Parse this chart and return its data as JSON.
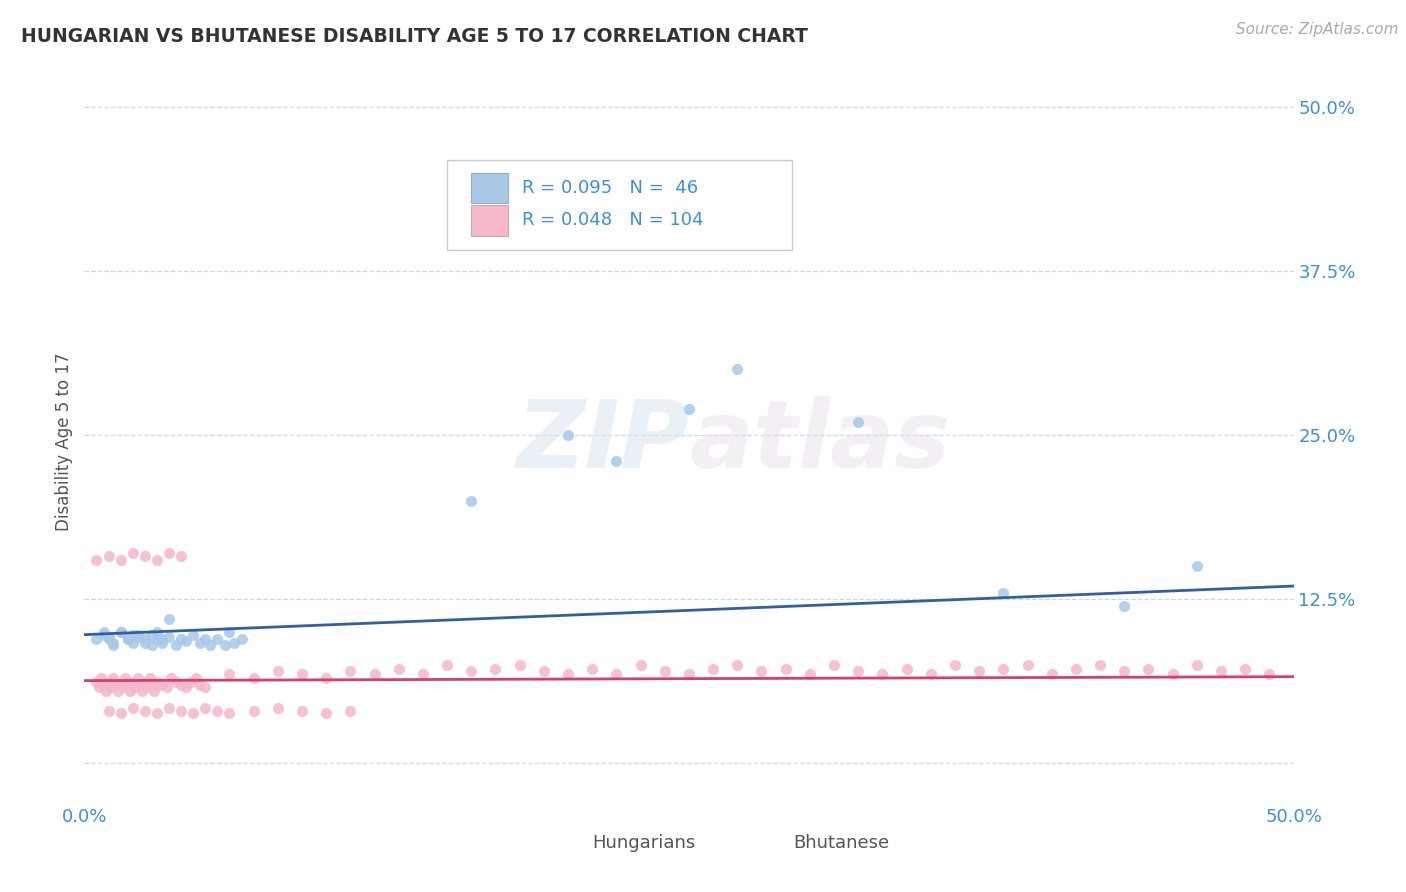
{
  "title": "HUNGARIAN VS BHUTANESE DISABILITY AGE 5 TO 17 CORRELATION CHART",
  "source_text": "Source: ZipAtlas.com",
  "ylabel": "Disability Age 5 to 17",
  "xlim": [
    0.0,
    0.5
  ],
  "ylim": [
    -0.03,
    0.52
  ],
  "yticks": [
    0.0,
    0.125,
    0.25,
    0.375,
    0.5
  ],
  "ytick_labels": [
    "",
    "12.5%",
    "25.0%",
    "37.5%",
    "50.0%"
  ],
  "xtick_labels": [
    "0.0%",
    "50.0%"
  ],
  "blue_R": 0.095,
  "blue_N": 46,
  "pink_R": 0.048,
  "pink_N": 104,
  "blue_scatter_color": "#a8c8e8",
  "pink_scatter_color": "#f4b8c8",
  "blue_line_color": "#3060a0",
  "pink_line_color": "#d04070",
  "tick_color": "#4090d0",
  "grid_color": "#c8d8e8",
  "watermark_color": "#e0e8f0",
  "hungarian_x": [
    0.005,
    0.008,
    0.01,
    0.012,
    0.015,
    0.018,
    0.02,
    0.022,
    0.025,
    0.028,
    0.03,
    0.032,
    0.035,
    0.038,
    0.04,
    0.042,
    0.045,
    0.048,
    0.05,
    0.052,
    0.055,
    0.058,
    0.06,
    0.062,
    0.065,
    0.008,
    0.01,
    0.012,
    0.015,
    0.018,
    0.02,
    0.022,
    0.025,
    0.028,
    0.03,
    0.032,
    0.035,
    0.16,
    0.2,
    0.22,
    0.25,
    0.27,
    0.32,
    0.38,
    0.43,
    0.46
  ],
  "hungarian_y": [
    0.095,
    0.1,
    0.095,
    0.09,
    0.1,
    0.095,
    0.092,
    0.098,
    0.095,
    0.09,
    0.095,
    0.092,
    0.096,
    0.09,
    0.095,
    0.093,
    0.098,
    0.092,
    0.095,
    0.09,
    0.095,
    0.09,
    0.1,
    0.092,
    0.095,
    0.098,
    0.096,
    0.092,
    0.1,
    0.095,
    0.098,
    0.096,
    0.092,
    0.098,
    0.1,
    0.095,
    0.11,
    0.2,
    0.25,
    0.23,
    0.27,
    0.3,
    0.26,
    0.13,
    0.12,
    0.15
  ],
  "bhutanese_x": [
    0.005,
    0.006,
    0.007,
    0.008,
    0.009,
    0.01,
    0.011,
    0.012,
    0.013,
    0.014,
    0.015,
    0.016,
    0.017,
    0.018,
    0.019,
    0.02,
    0.021,
    0.022,
    0.023,
    0.024,
    0.025,
    0.026,
    0.027,
    0.028,
    0.029,
    0.03,
    0.032,
    0.034,
    0.036,
    0.038,
    0.04,
    0.042,
    0.044,
    0.046,
    0.048,
    0.05,
    0.06,
    0.07,
    0.08,
    0.09,
    0.1,
    0.11,
    0.12,
    0.13,
    0.14,
    0.15,
    0.16,
    0.17,
    0.18,
    0.19,
    0.2,
    0.21,
    0.22,
    0.23,
    0.24,
    0.25,
    0.26,
    0.27,
    0.28,
    0.29,
    0.3,
    0.31,
    0.32,
    0.33,
    0.34,
    0.35,
    0.36,
    0.37,
    0.38,
    0.39,
    0.4,
    0.41,
    0.42,
    0.43,
    0.44,
    0.45,
    0.46,
    0.47,
    0.48,
    0.49,
    0.01,
    0.015,
    0.02,
    0.025,
    0.03,
    0.035,
    0.04,
    0.045,
    0.05,
    0.055,
    0.06,
    0.07,
    0.08,
    0.09,
    0.1,
    0.11,
    0.005,
    0.01,
    0.015,
    0.02,
    0.025,
    0.03,
    0.035,
    0.04
  ],
  "bhutanese_y": [
    0.062,
    0.058,
    0.065,
    0.06,
    0.055,
    0.062,
    0.058,
    0.065,
    0.06,
    0.055,
    0.062,
    0.058,
    0.065,
    0.06,
    0.055,
    0.062,
    0.058,
    0.065,
    0.06,
    0.055,
    0.062,
    0.058,
    0.065,
    0.06,
    0.055,
    0.062,
    0.06,
    0.058,
    0.065,
    0.062,
    0.06,
    0.058,
    0.062,
    0.065,
    0.06,
    0.058,
    0.068,
    0.065,
    0.07,
    0.068,
    0.065,
    0.07,
    0.068,
    0.072,
    0.068,
    0.075,
    0.07,
    0.072,
    0.075,
    0.07,
    0.068,
    0.072,
    0.068,
    0.075,
    0.07,
    0.068,
    0.072,
    0.075,
    0.07,
    0.072,
    0.068,
    0.075,
    0.07,
    0.068,
    0.072,
    0.068,
    0.075,
    0.07,
    0.072,
    0.075,
    0.068,
    0.072,
    0.075,
    0.07,
    0.072,
    0.068,
    0.075,
    0.07,
    0.072,
    0.068,
    0.04,
    0.038,
    0.042,
    0.04,
    0.038,
    0.042,
    0.04,
    0.038,
    0.042,
    0.04,
    0.038,
    0.04,
    0.042,
    0.04,
    0.038,
    0.04,
    0.155,
    0.158,
    0.155,
    0.16,
    0.158,
    0.155,
    0.16,
    0.158
  ],
  "blue_trend_x0": 0.0,
  "blue_trend_y0": 0.098,
  "blue_trend_x1": 0.5,
  "blue_trend_y1": 0.135,
  "pink_trend_x0": 0.0,
  "pink_trend_y0": 0.063,
  "pink_trend_x1": 0.5,
  "pink_trend_y1": 0.066
}
